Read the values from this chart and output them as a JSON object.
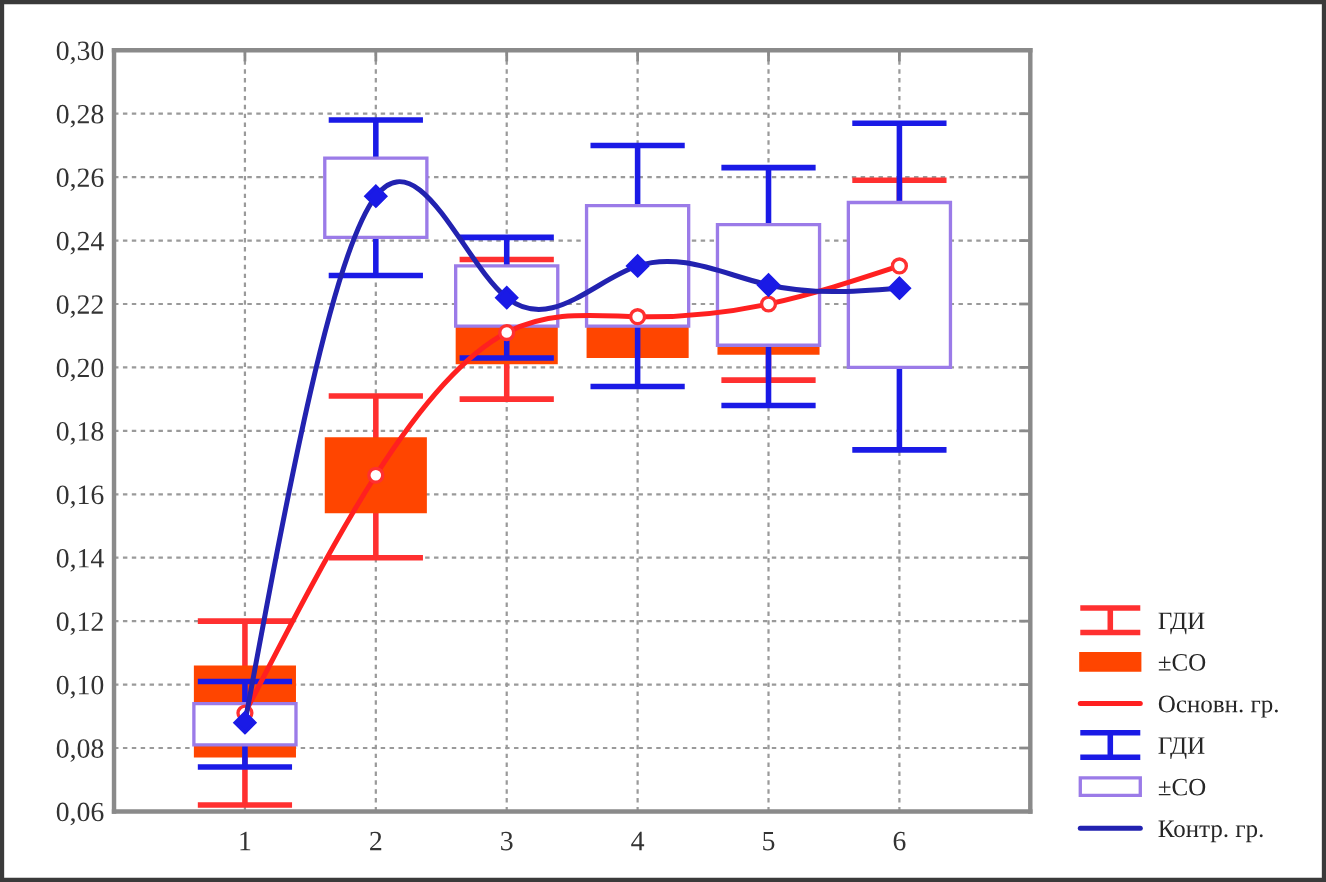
{
  "chart_data": {
    "type": "bar",
    "categories": [
      "1",
      "2",
      "3",
      "4",
      "5",
      "6"
    ],
    "ylim": [
      0.06,
      0.3
    ],
    "yticks": [
      {
        "value": 0.06,
        "label": "0,06"
      },
      {
        "value": 0.08,
        "label": "0,08"
      },
      {
        "value": 0.1,
        "label": "0,10"
      },
      {
        "value": 0.12,
        "label": "0,12"
      },
      {
        "value": 0.14,
        "label": "0,14"
      },
      {
        "value": 0.16,
        "label": "0,16"
      },
      {
        "value": 0.18,
        "label": "0,18"
      },
      {
        "value": 0.2,
        "label": "0,20"
      },
      {
        "value": 0.22,
        "label": "0,22"
      },
      {
        "value": 0.24,
        "label": "0,24"
      },
      {
        "value": 0.26,
        "label": "0,26"
      },
      {
        "value": 0.28,
        "label": "0,28"
      },
      {
        "value": 0.3,
        "label": "0,30"
      }
    ],
    "grid": true,
    "legend": "bottom right",
    "series": [
      {
        "name": "ГДИ",
        "type": "scatter",
        "color": "#ff3030",
        "marker": "circle",
        "values": [
          0.091,
          0.166,
          0.211,
          0.216,
          0.22,
          0.232
        ],
        "errors": [
          [
            0.062,
            0.12
          ],
          [
            0.14,
            0.191
          ],
          [
            0.19,
            0.234
          ],
          null,
          [
            0.196,
            0.244
          ],
          [
            0.232,
            0.259
          ]
        ]
      },
      {
        "name": "±СО",
        "color": "#ff4500",
        "base": [
          0.077,
          0.154,
          0.201,
          0.203,
          0.204,
          null
        ],
        "values": [
          0.029,
          0.024,
          0.012,
          0.01,
          0.003,
          null
        ]
      },
      {
        "name": "Основн. гр.",
        "type": "line",
        "color": "#ff2020",
        "values": [
          0.091,
          0.166,
          0.211,
          0.216,
          0.22,
          0.232
        ]
      },
      {
        "name": "ГДИ",
        "type": "scatter",
        "color": "#1a1ae6",
        "marker": "diamond",
        "values": [
          0.088,
          0.254,
          0.222,
          0.232,
          0.226,
          0.225
        ],
        "errors": [
          [
            0.074,
            0.101
          ],
          [
            0.229,
            0.278
          ],
          [
            0.203,
            0.241
          ],
          [
            0.194,
            0.27
          ],
          [
            0.188,
            0.263
          ],
          [
            0.174,
            0.277
          ]
        ]
      },
      {
        "name": "±СО",
        "color": "#9b7be8",
        "line_style": "solid",
        "base": [
          0.081,
          0.241,
          0.213,
          0.213,
          0.207,
          0.2
        ],
        "values": [
          0.013,
          0.025,
          0.019,
          0.038,
          0.038,
          0.052
        ]
      },
      {
        "name": "Контр. гр.",
        "type": "line",
        "color": "#2222b0",
        "values": [
          0.088,
          0.254,
          0.222,
          0.232,
          0.226,
          0.225
        ]
      }
    ]
  }
}
